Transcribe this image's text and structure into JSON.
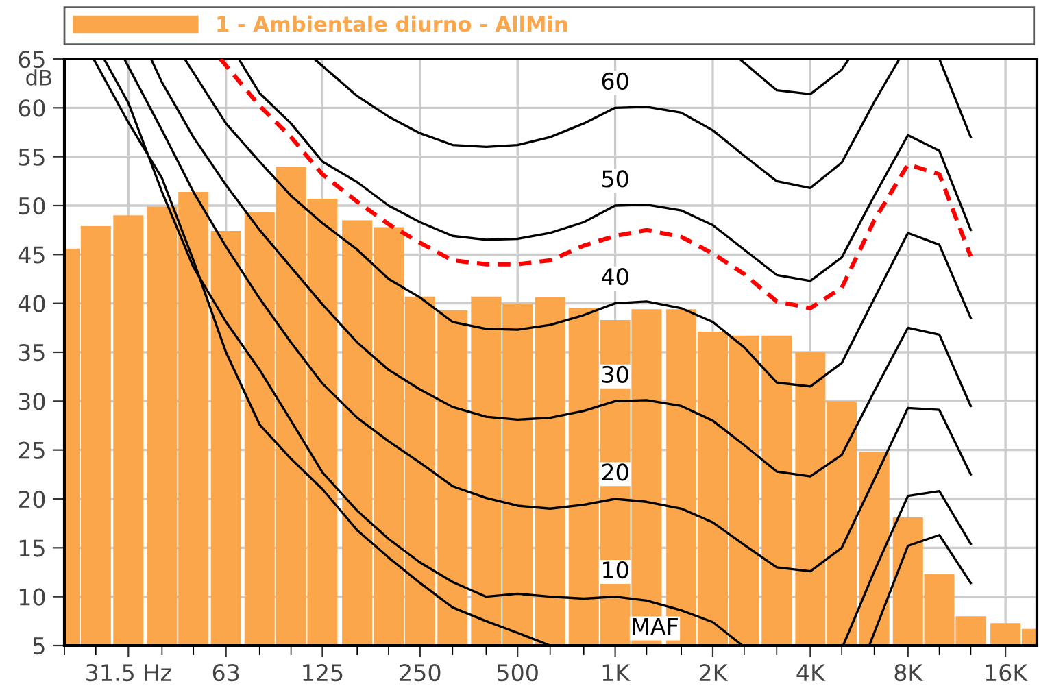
{
  "chart_data": {
    "type": "bar",
    "ylabel": "dB",
    "log": "x",
    "grid": true,
    "legend": "top",
    "xlim": [
      20,
      20000
    ],
    "ylim": [
      5,
      65
    ],
    "xticks": [
      {
        "value": 20,
        "label": null
      },
      {
        "value": 25,
        "label": null
      },
      {
        "value": 31.5,
        "label": "31.5 Hz"
      },
      {
        "value": 40,
        "label": null
      },
      {
        "value": 50,
        "label": null
      },
      63,
      {
        "value": 80,
        "label": null
      },
      {
        "value": 100,
        "label": null
      },
      125,
      {
        "value": 160,
        "label": null
      },
      {
        "value": 200,
        "label": null
      },
      250,
      {
        "value": 315,
        "label": null
      },
      {
        "value": 400,
        "label": null
      },
      500,
      {
        "value": 630,
        "label": null
      },
      {
        "value": 800,
        "label": null
      },
      {
        "value": 1000,
        "label": "1K"
      },
      {
        "value": 1250,
        "label": null
      },
      {
        "value": 1600,
        "label": null
      },
      {
        "value": 2000,
        "label": "2K"
      },
      {
        "value": 2500,
        "label": null
      },
      {
        "value": 3150,
        "label": null
      },
      {
        "value": 4000,
        "label": "4K"
      },
      {
        "value": 5000,
        "label": null
      },
      {
        "value": 6300,
        "label": null
      },
      {
        "value": 8000,
        "label": "8K"
      },
      {
        "value": 10000,
        "label": null
      },
      {
        "value": 12500,
        "label": null
      },
      {
        "value": 16000,
        "label": "16K"
      }
    ],
    "yticks": [
      5,
      10,
      15,
      20,
      25,
      30,
      35,
      40,
      45,
      50,
      55,
      60,
      65
    ],
    "x": [
      20,
      25,
      31.5,
      40,
      50,
      63,
      80,
      100,
      125,
      160,
      200,
      250,
      315,
      400,
      500,
      630,
      800,
      1000,
      1250,
      1600,
      2000,
      2500,
      3150,
      4000,
      5000,
      6300,
      8000,
      10000,
      12500,
      16000,
      20000
    ],
    "series": [
      {
        "name": "1 - Ambientale diurno - AllMin",
        "color": "#fca64b",
        "values": [
          45.6,
          47.9,
          49.0,
          49.9,
          51.4,
          47.4,
          49.3,
          54.0,
          50.7,
          48.5,
          47.8,
          40.7,
          39.3,
          40.7,
          40.0,
          40.6,
          39.5,
          38.3,
          39.4,
          39.4,
          37.1,
          36.7,
          36.7,
          35.0,
          30.0,
          24.8,
          18.1,
          12.3,
          8.0,
          7.3,
          6.7
        ]
      },
      {
        "type": "line",
        "color": "#000000",
        "line_style": "solid",
        "x": [
          2420,
          3150,
          4000,
          5000,
          5260
        ],
        "values": [
          65,
          61.8,
          61.4,
          63.9,
          65
        ]
      },
      {
        "type": "line",
        "name": "60",
        "color": "#000000",
        "line_style": "solid",
        "x": [
          118,
          160,
          200,
          250,
          315,
          400,
          500,
          630,
          800,
          1000,
          1250,
          1600,
          2000,
          2500,
          3150,
          4000,
          5000,
          6300,
          7530,
          8000,
          10000,
          12500
        ],
        "values": [
          65,
          61.2,
          59.1,
          57.4,
          56.2,
          56.0,
          56.2,
          57.0,
          58.4,
          60.0,
          60.1,
          59.5,
          57.7,
          55.1,
          52.5,
          51.8,
          54.4,
          60.6,
          65,
          null,
          65,
          57.0
        ]
      },
      {
        "type": "line",
        "name": "50",
        "color": "#000000",
        "line_style": "solid",
        "x": [
          69,
          80,
          100,
          125,
          160,
          200,
          250,
          315,
          400,
          500,
          630,
          800,
          1000,
          1250,
          1600,
          2000,
          2500,
          3150,
          4000,
          5000,
          6300,
          8000,
          10000,
          12500
        ],
        "values": [
          65,
          61.5,
          58.4,
          54.5,
          52.4,
          50.0,
          48.3,
          46.9,
          46.5,
          46.6,
          47.2,
          48.3,
          50.0,
          50.1,
          49.5,
          48.0,
          45.5,
          42.9,
          42.3,
          44.7,
          51.0,
          57.2,
          55.6,
          47.5
        ]
      },
      {
        "type": "line",
        "color": "#ff0000",
        "line_style": "dashed",
        "x": [
          60.6,
          80,
          100,
          125,
          160,
          200,
          250,
          315,
          400,
          500,
          630,
          800,
          1000,
          1250,
          1600,
          2000,
          2500,
          3150,
          4000,
          5000,
          6300,
          8000,
          10000,
          12500
        ],
        "values": [
          65,
          60.2,
          57.0,
          53.2,
          50.4,
          48.1,
          46.2,
          44.4,
          44.0,
          44.0,
          44.4,
          45.9,
          46.9,
          47.5,
          46.8,
          45.1,
          43.0,
          40.2,
          39.5,
          41.6,
          48.5,
          54.2,
          53.2,
          44.8
        ]
      },
      {
        "type": "line",
        "name": "40",
        "color": "#000000",
        "line_style": "solid",
        "x": [
          47,
          63,
          80,
          100,
          125,
          160,
          200,
          250,
          315,
          400,
          500,
          630,
          800,
          1000,
          1250,
          1600,
          2000,
          2500,
          3150,
          4000,
          5000,
          6300,
          8000,
          10000,
          12500
        ],
        "values": [
          65,
          58.4,
          54.5,
          51.0,
          48.2,
          45.5,
          42.5,
          40.6,
          38.1,
          37.4,
          37.3,
          37.8,
          38.8,
          40.0,
          40.2,
          39.5,
          38.1,
          35.5,
          31.9,
          31.5,
          33.9,
          40.5,
          47.2,
          46.0,
          38.5
        ]
      },
      {
        "type": "line",
        "name": "30",
        "color": "#000000",
        "line_style": "solid",
        "x": [
          37,
          40,
          50,
          63,
          80,
          100,
          125,
          160,
          200,
          250,
          315,
          400,
          500,
          630,
          800,
          1000,
          1250,
          1600,
          2000,
          2500,
          3150,
          4000,
          5000,
          6300,
          8000,
          10000,
          12500
        ],
        "values": [
          65,
          62.6,
          57.0,
          52.1,
          47.5,
          43.7,
          39.9,
          36.0,
          33.2,
          31.2,
          29.4,
          28.4,
          28.1,
          28.3,
          29.0,
          30.0,
          30.1,
          29.5,
          28.0,
          25.5,
          22.8,
          22.3,
          24.5,
          31.0,
          37.5,
          36.8,
          29.5
        ]
      },
      {
        "type": "line",
        "name": "20",
        "color": "#000000",
        "line_style": "solid",
        "x": [
          30.6,
          40,
          50,
          63,
          80,
          100,
          125,
          160,
          200,
          250,
          315,
          400,
          500,
          630,
          800,
          1000,
          1250,
          1600,
          2000,
          2500,
          3150,
          4000,
          5000,
          6300,
          8000,
          10000,
          12500
        ],
        "values": [
          65,
          57.7,
          51.4,
          45.8,
          40.5,
          36.0,
          31.8,
          28.3,
          25.9,
          23.7,
          21.3,
          20.1,
          19.3,
          19.0,
          19.4,
          20.0,
          19.7,
          19.0,
          17.6,
          15.3,
          13.0,
          12.6,
          15.0,
          22.0,
          29.3,
          29.1,
          22.5
        ]
      },
      {
        "type": "line",
        "name": "10",
        "color": "#000000",
        "line_style": "solid",
        "x": [
          26.5,
          31.5,
          40,
          50,
          63,
          80,
          100,
          125,
          160,
          200,
          250,
          315,
          400,
          500,
          630,
          800,
          1000,
          1250,
          1600,
          2000,
          2470,
          2500,
          5050,
          6300,
          8000,
          10000,
          12500
        ],
        "values": [
          65,
          60.5,
          51.4,
          43.7,
          38.1,
          33.2,
          28.0,
          22.7,
          18.8,
          15.9,
          13.5,
          11.5,
          10.0,
          10.3,
          10.0,
          9.8,
          10.0,
          9.6,
          8.6,
          7.4,
          5,
          null,
          5,
          12.6,
          20.3,
          20.8,
          15.4
        ]
      },
      {
        "type": "line",
        "name": "MAF",
        "color": "#000000",
        "line_style": "solid",
        "x": [
          24.6,
          31.5,
          40,
          50,
          63,
          80,
          100,
          125,
          160,
          200,
          250,
          315,
          400,
          500,
          630,
          1000,
          6080,
          8000,
          10000,
          12500
        ],
        "values": [
          65,
          58.5,
          52.8,
          44.4,
          35.0,
          27.6,
          24.1,
          21.0,
          16.8,
          14.0,
          11.4,
          8.9,
          7.5,
          6.3,
          5,
          null,
          5,
          15.2,
          16.3,
          11.4
        ]
      }
    ]
  }
}
